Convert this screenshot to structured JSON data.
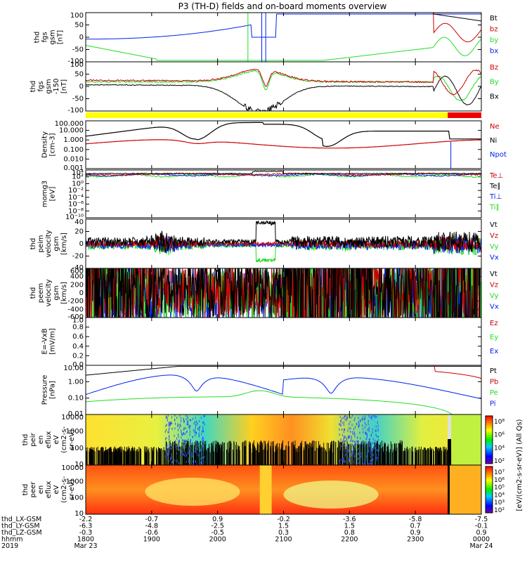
{
  "title": "P3 (TH-D) fields and on-board moments overview",
  "colors": {
    "black": "#000000",
    "red": "#cc0000",
    "green": "#22dd22",
    "blue": "#0022ee",
    "yellow": "#ffff00",
    "barred": "#ee0000"
  },
  "panels": [
    {
      "id": "fgs",
      "ylabel": [
        "thd",
        "fgs",
        "gsm",
        "[nT]"
      ],
      "ticks": [
        "100",
        "50",
        "0",
        "-50",
        "-100"
      ],
      "legend": [
        {
          "t": "Bt",
          "c": "black"
        },
        {
          "t": "bz",
          "c": "red"
        },
        {
          "t": "by",
          "c": "green"
        },
        {
          "t": "bx",
          "c": "blue"
        }
      ]
    },
    {
      "id": "fgs-clip",
      "ylabel": [
        "thd",
        "fgs",
        "gsm",
        "-150",
        "[nT]"
      ],
      "ticks": [
        "100",
        "50",
        "0",
        "-50",
        "-100"
      ],
      "legend": [
        {
          "t": "Bz",
          "c": "red"
        },
        {
          "t": "By",
          "c": "green"
        },
        {
          "t": "Bx",
          "c": "black"
        }
      ]
    },
    {
      "id": "density",
      "ylabel": [
        "Density",
        "[cm-3]"
      ],
      "ticks": [
        "100.000",
        "10.000",
        "1.000",
        "0.100",
        "0.010",
        "0.001"
      ],
      "legend": [
        {
          "t": "Ne",
          "c": "red"
        },
        {
          "t": "Ni",
          "c": "black"
        },
        {
          "t": "Npot",
          "c": "blue"
        }
      ]
    },
    {
      "id": "temp",
      "ylabel": [
        "momg3",
        "[eV]"
      ],
      "ticks": [
        "10⁴",
        "10²",
        "10⁰",
        "10⁻²",
        "10⁻⁴",
        "10⁻⁶",
        "10⁻⁸",
        "10⁻¹⁰"
      ],
      "legend": [
        {
          "t": "Te⊥",
          "c": "red"
        },
        {
          "t": "Te∥",
          "c": "black"
        },
        {
          "t": "Ti⊥",
          "c": "blue"
        },
        {
          "t": "Ti∥",
          "c": "green"
        }
      ]
    },
    {
      "id": "vi",
      "ylabel": [
        "thd",
        "peim",
        "velocity",
        "gsm",
        "[km/s]"
      ],
      "ticks": [
        "40",
        "20",
        "0",
        "-20",
        "-40"
      ],
      "legend": [
        {
          "t": "Vt",
          "c": "black"
        },
        {
          "t": "Vz",
          "c": "red"
        },
        {
          "t": "Vy",
          "c": "green"
        },
        {
          "t": "Vx",
          "c": "blue"
        }
      ]
    },
    {
      "id": "ve",
      "ylabel": [
        "thd",
        "peem",
        "velocity",
        "gsm",
        "[km/s]"
      ],
      "ticks": [
        "600",
        "400",
        "200",
        "0",
        "-200",
        "-400",
        "-600"
      ],
      "legend": [
        {
          "t": "Vt",
          "c": "black"
        },
        {
          "t": "Vz",
          "c": "red"
        },
        {
          "t": "Vy",
          "c": "green"
        },
        {
          "t": "Vx",
          "c": "blue"
        }
      ]
    },
    {
      "id": "efield",
      "ylabel": [
        "E=-VxB",
        "[mV/m]"
      ],
      "ticks": [
        "1.0",
        "0.8",
        "0.6",
        "0.4",
        "0.2",
        "0.0"
      ],
      "legend": [
        {
          "t": "Ez",
          "c": "red"
        },
        {
          "t": "Ey",
          "c": "green"
        },
        {
          "t": "Ex",
          "c": "blue"
        }
      ]
    },
    {
      "id": "pressure",
      "ylabel": [
        "Pressure",
        "[nPa]"
      ],
      "ticks": [
        "10.00",
        "1.00",
        "0.10",
        "0.01"
      ],
      "legend": [
        {
          "t": "Pt",
          "c": "black"
        },
        {
          "t": "Pb",
          "c": "red"
        },
        {
          "t": "Pe",
          "c": "green"
        },
        {
          "t": "Pi",
          "c": "blue"
        }
      ]
    },
    {
      "id": "peir",
      "ylabel": [
        "thd",
        "peir",
        "en",
        "eflux",
        "eV",
        "(cm2-s-",
        "sr-eV)"
      ],
      "ticks": [
        "10000",
        "1000",
        "100",
        "10"
      ],
      "legend": []
    },
    {
      "id": "peer",
      "ylabel": [
        "thd",
        "peer",
        "en",
        "eflux",
        "eV",
        "(cm2-s-",
        "sr-eV)"
      ],
      "ticks": [
        "10000",
        "1000",
        "100",
        "10"
      ],
      "legend": []
    }
  ],
  "colorbar": {
    "label": "[eV/(cm2-s-sr-eV)] (All Qs)",
    "ticks_top": [
      "10⁸",
      "10⁶",
      "10⁴",
      "10²"
    ],
    "ticks_bottom": [
      "10⁷",
      "10⁶",
      "10⁵",
      "10⁴",
      "10³",
      "10²"
    ]
  },
  "xaxis": {
    "rows": [
      {
        "label": "thd_LX-GSM",
        "values": [
          "-2.2",
          "-0.7",
          "0.9",
          "-0.2",
          "-3.6",
          "-5.8",
          "-7.5"
        ]
      },
      {
        "label": "thd_LY-GSM",
        "values": [
          "-6.3",
          "-4.8",
          "-2.5",
          "1.5",
          "1.5",
          "0.7",
          "-0.1"
        ]
      },
      {
        "label": "thd_LZ-GSM",
        "values": [
          "-0.3",
          "-0.6",
          "-0.5",
          "0.3",
          "0.8",
          "0.9",
          "0.9"
        ]
      },
      {
        "label": "hhmm",
        "values": [
          "1800",
          "1900",
          "2000",
          "2100",
          "2200",
          "2300",
          "0000"
        ]
      },
      {
        "label": "2019",
        "values": [
          "Mar 23",
          "",
          "",
          "",
          "",
          "",
          "Mar 24"
        ]
      }
    ]
  },
  "chart_data": [
    {
      "type": "line",
      "panel": "fgs",
      "x": [
        "1800",
        "1900",
        "2000",
        "2100",
        "2200",
        "2300",
        "0000"
      ],
      "ylim": [
        -100,
        100
      ],
      "series": [
        {
          "name": "bx",
          "values": [
            -8,
            45,
            100,
            0,
            100,
            100,
            -20
          ]
        },
        {
          "name": "by",
          "values": [
            -35,
            -95,
            -100,
            0,
            -100,
            -45,
            -40
          ]
        },
        {
          "name": "bz",
          "values": [
            null,
            null,
            null,
            null,
            null,
            null,
            30
          ]
        },
        {
          "name": "Bt",
          "values": [
            null,
            null,
            null,
            null,
            null,
            null,
            70
          ]
        }
      ]
    },
    {
      "type": "line",
      "panel": "fgs-clip",
      "x": [
        "1800",
        "1900",
        "2000",
        "2100",
        "2200",
        "2300",
        "0000"
      ],
      "ylim": [
        -150,
        100
      ],
      "series": [
        {
          "name": "Bz",
          "values": [
            18,
            28,
            55,
            75,
            45,
            25,
            0
          ]
        },
        {
          "name": "By",
          "values": [
            15,
            20,
            45,
            65,
            35,
            22,
            -20
          ]
        },
        {
          "name": "Bx",
          "values": [
            -3,
            -15,
            -50,
            -140,
            -50,
            -20,
            -20
          ]
        }
      ]
    },
    {
      "type": "line",
      "panel": "density",
      "x": [
        "1800",
        "1900",
        "2000",
        "2100",
        "2200",
        "2300",
        "0000"
      ],
      "ylim": [
        0.001,
        100
      ],
      "yscale": "log",
      "series": [
        {
          "name": "Ni",
          "values": [
            3,
            10,
            0.15,
            100,
            0.3,
            3,
            1.5
          ]
        },
        {
          "name": "Ne",
          "values": [
            0.3,
            0.7,
            0.15,
            1.5,
            0.15,
            0.3,
            0.2
          ]
        },
        {
          "name": "Npot",
          "values": [
            null,
            null,
            null,
            null,
            null,
            null,
            0.001
          ]
        }
      ]
    },
    {
      "type": "line",
      "panel": "pressure",
      "x": [
        "1800",
        "1900",
        "2000",
        "2100",
        "2200",
        "2300",
        "0000"
      ],
      "ylim": [
        0.005,
        20
      ],
      "yscale": "log",
      "series": [
        {
          "name": "Pt",
          "values": [
            6,
            18,
            20,
            20,
            20,
            10,
            2
          ]
        },
        {
          "name": "Pi",
          "values": [
            0.15,
            0.8,
            0.005,
            1.5,
            0.005,
            0.8,
            0.2
          ]
        },
        {
          "name": "Pe",
          "values": [
            0.05,
            0.08,
            0.1,
            0.3,
            0.08,
            0.03,
            0.01
          ]
        }
      ]
    },
    {
      "type": "line",
      "panel": "vi",
      "x": [
        "1800",
        "1900",
        "2000",
        "2100",
        "2200",
        "2300",
        "0000"
      ],
      "ylim": [
        -40,
        40
      ],
      "series": [
        {
          "name": "Vt",
          "values": [
            2,
            4,
            5,
            40,
            5,
            4,
            10
          ]
        },
        {
          "name": "Vy",
          "values": [
            -2,
            -4,
            -8,
            -30,
            -4,
            -3,
            -8
          ]
        }
      ]
    },
    {
      "type": "line",
      "panel": "ve",
      "x": [
        "1800",
        "1900",
        "2000",
        "2100",
        "2200",
        "2300",
        "0000"
      ],
      "ylim": [
        -600,
        600
      ],
      "series": [
        {
          "name": "Vt",
          "values": [
            100,
            150,
            50,
            100,
            350,
            150,
            200
          ]
        },
        {
          "name": "Vy",
          "values": [
            -50,
            -80,
            0,
            -80,
            -200,
            -80,
            -150
          ]
        }
      ]
    },
    {
      "type": "heatmap",
      "panel": "peir",
      "x": [
        "1800",
        "1900",
        "2000",
        "2100",
        "2200",
        "2300",
        "0000"
      ],
      "ylim": [
        10,
        20000
      ],
      "yscale": "log"
    },
    {
      "type": "heatmap",
      "panel": "peer",
      "x": [
        "1800",
        "1900",
        "2000",
        "2100",
        "2200",
        "2300",
        "0000"
      ],
      "ylim": [
        10,
        20000
      ],
      "yscale": "log"
    }
  ]
}
